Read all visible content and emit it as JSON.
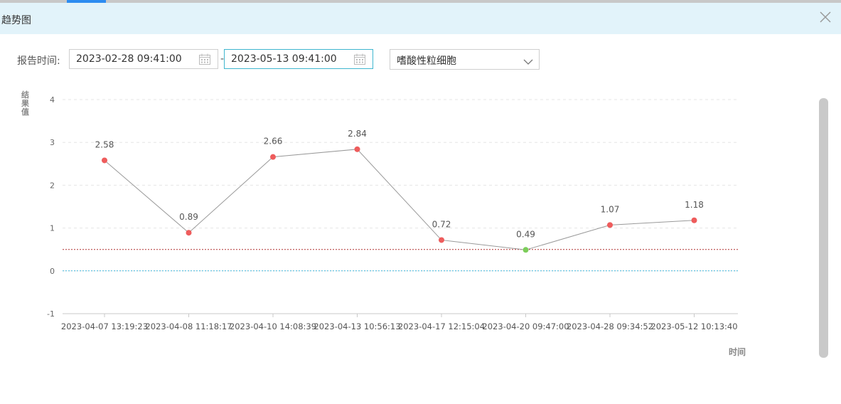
{
  "dialog": {
    "title": "趋势图"
  },
  "filters": {
    "report_time_label": "报告时间:",
    "start_date": "2023-02-28 09:41:00",
    "separator": "-",
    "end_date": "2023-05-13 09:41:00",
    "item_select": "嗜酸性粒细胞"
  },
  "icons": {
    "close": "close-icon",
    "calendar": "calendar-icon",
    "dropdown": "chevron-down-icon"
  },
  "colors": {
    "point_abnormal": "#ee5c5c",
    "point_normal": "#7ccd5a",
    "line": "#999999",
    "upper_ref_line": "#b03030",
    "lower_ref_line": "#3fb6dc"
  },
  "chart_data": {
    "type": "line",
    "title": "",
    "ylabel": "结果值",
    "xlabel": "时间",
    "ylim": [
      -1,
      4
    ],
    "yticks": [
      "-1",
      "0",
      "1",
      "2",
      "3",
      "4"
    ],
    "grid": true,
    "categories": [
      "2023-04-07 13:19:23",
      "2023-04-08 11:18:17",
      "2023-04-10 14:08:39",
      "2023-04-13 10:56:13",
      "2023-04-17 12:15:04",
      "2023-04-20 09:47:00",
      "2023-04-28 09:34:52",
      "2023-05-12 10:13:40"
    ],
    "series": [
      {
        "values": [
          2.58,
          0.89,
          2.66,
          2.84,
          0.72,
          0.49,
          1.07,
          1.18
        ],
        "labels": [
          "2.58",
          "0.89",
          "2.66",
          "2.84",
          "0.72",
          "0.49",
          "1.07",
          "1.18"
        ],
        "status": [
          "abnormal",
          "abnormal",
          "abnormal",
          "abnormal",
          "abnormal",
          "normal",
          "abnormal",
          "abnormal"
        ]
      }
    ],
    "reference_lines": [
      {
        "value": 0.5,
        "style": "dotted"
      },
      {
        "value": 0,
        "style": "dotted"
      }
    ]
  }
}
